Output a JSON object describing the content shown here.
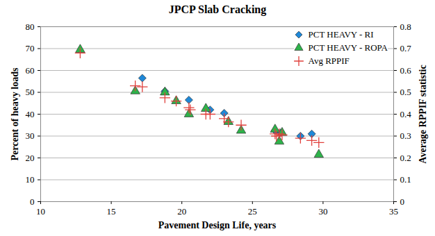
{
  "chart_data": {
    "type": "scatter",
    "title": "JPCP Slab Cracking",
    "x_label": "Pavement Design Life, years",
    "y_label": "Percent of heavy loads",
    "y2_label": "Average RPPIF statistic",
    "xlim": [
      10,
      35
    ],
    "xticks": [
      10,
      15,
      20,
      25,
      30,
      35
    ],
    "ylim": [
      0,
      80
    ],
    "yticks": [
      0,
      10,
      20,
      30,
      40,
      50,
      60,
      70,
      80
    ],
    "y2lim": [
      0,
      0.8
    ],
    "y2ticks": [
      0,
      0.1,
      0.2,
      0.3,
      0.4,
      0.5,
      0.6,
      0.7,
      0.8
    ],
    "grid": true,
    "legend": "upper right",
    "series": [
      {
        "name": "PCT HEAVY - RI",
        "color": "#1e88d8",
        "marker": "diamond",
        "x": [
          17.2,
          18.8,
          20.5,
          22.0,
          23.0,
          26.6,
          27.0,
          28.4,
          29.2
        ],
        "values": [
          56.5,
          50.5,
          46.5,
          42,
          40.5,
          32.5,
          31.5,
          30,
          31
        ]
      },
      {
        "name": "PCT HEAVY - ROPA",
        "color": "#2db34a",
        "marker": "triangle",
        "x": [
          12.8,
          16.7,
          18.8,
          19.6,
          20.5,
          21.7,
          23.3,
          24.2,
          26.6,
          26.9,
          27.1,
          29.7
        ],
        "values": [
          69.5,
          50.5,
          50,
          46,
          40,
          42.5,
          36.5,
          32.5,
          33,
          27.5,
          31.5,
          21.5
        ]
      },
      {
        "name": "Avg RPPIF",
        "color": "#e0403c",
        "marker": "plus",
        "axis": "y2",
        "x": [
          12.8,
          16.7,
          17.2,
          18.8,
          19.6,
          20.5,
          20.6,
          21.7,
          22.0,
          23.0,
          23.3,
          24.2,
          26.6,
          26.7,
          26.9,
          27.1,
          28.4,
          29.2,
          29.7
        ],
        "values": [
          0.68,
          0.53,
          0.525,
          0.475,
          0.46,
          0.43,
          0.42,
          0.4,
          0.4,
          0.38,
          0.365,
          0.35,
          0.31,
          0.3,
          0.31,
          0.305,
          0.29,
          0.28,
          0.27
        ]
      }
    ]
  }
}
